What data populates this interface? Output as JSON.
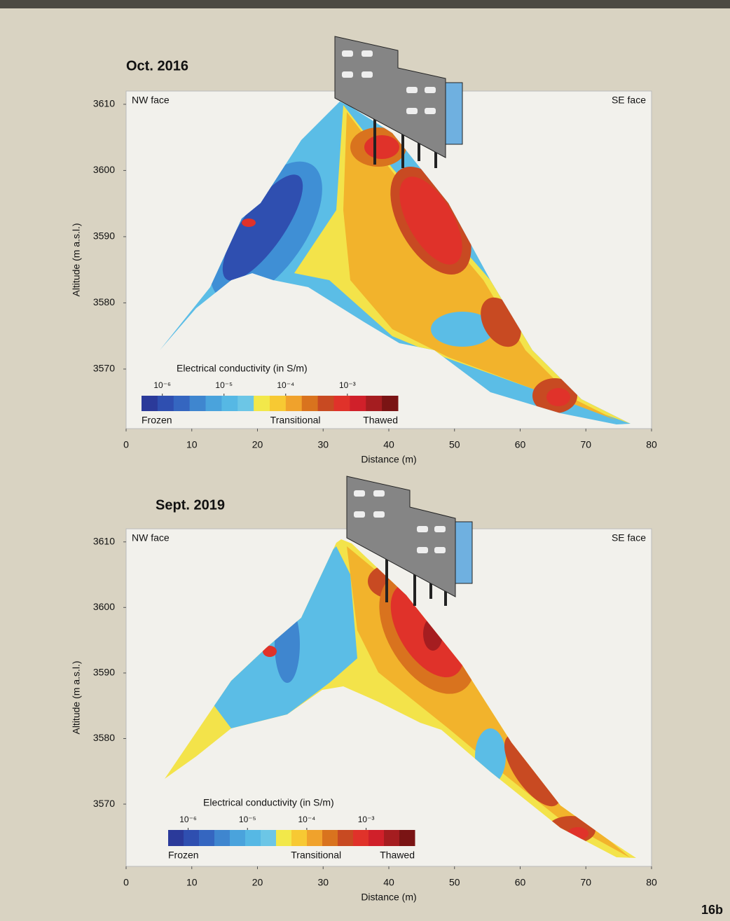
{
  "page_label": "16b",
  "chart_data": [
    {
      "type": "contour",
      "title": "Oct. 2016",
      "left_label": "NW face",
      "right_label": "SE face",
      "x_label": "Distance (m)",
      "y_label": "Altitude (m a.s.l.)",
      "xlim": [
        0,
        80
      ],
      "xticks": [
        0,
        10,
        20,
        30,
        40,
        50,
        60,
        70,
        80
      ],
      "ylim": [
        3561,
        3612
      ],
      "yticks": [
        3570,
        3580,
        3590,
        3600,
        3610
      ],
      "colorbar": {
        "title": "Electrical conductivity (in S/m)",
        "scale": "log",
        "clim": [
          4.6e-07,
          0.0066
        ],
        "ticks": [
          {
            "value": 1e-06,
            "label": "10⁻⁶"
          },
          {
            "value": 1e-05,
            "label": "10⁻⁵"
          },
          {
            "value": 0.0001,
            "label": "10⁻⁴"
          },
          {
            "value": 0.001,
            "label": "10⁻³"
          }
        ],
        "colors": [
          "#2b3a9a",
          "#2f4fb0",
          "#3566c0",
          "#3f86cf",
          "#4aa3dc",
          "#56b8e4",
          "#6cc6e6",
          "#f2e84a",
          "#f7c933",
          "#f0a22c",
          "#d9731e",
          "#c84a22",
          "#e0322a",
          "#d0202a",
          "#a51d20",
          "#7a1414"
        ],
        "labels": [
          "Frozen",
          "Transitional",
          "Thawed"
        ]
      }
    },
    {
      "type": "contour",
      "title": "Sept. 2019",
      "left_label": "NW face",
      "right_label": "SE face",
      "x_label": "Distance (m)",
      "y_label": "Altitude (m a.s.l.)",
      "xlim": [
        0,
        80
      ],
      "xticks": [
        0,
        10,
        20,
        30,
        40,
        50,
        60,
        70,
        80
      ],
      "ylim": [
        3560.5,
        3612
      ],
      "yticks": [
        3570,
        3580,
        3590,
        3600,
        3610
      ],
      "colorbar": {
        "title": "Electrical conductivity (in S/m)",
        "scale": "log",
        "clim": [
          4.6e-07,
          0.0066
        ],
        "ticks": [
          {
            "value": 1e-06,
            "label": "10⁻⁶"
          },
          {
            "value": 1e-05,
            "label": "10⁻⁵"
          },
          {
            "value": 0.0001,
            "label": "10⁻⁴"
          },
          {
            "value": 0.001,
            "label": "10⁻³"
          }
        ],
        "colors": [
          "#2b3a9a",
          "#2f4fb0",
          "#3566c0",
          "#3f86cf",
          "#4aa3dc",
          "#56b8e4",
          "#6cc6e6",
          "#f2e84a",
          "#f7c933",
          "#f0a22c",
          "#d9731e",
          "#c84a22",
          "#e0322a",
          "#d0202a",
          "#a51d20",
          "#7a1414"
        ],
        "labels": [
          "Frozen",
          "Transitional",
          "Thawed"
        ]
      }
    }
  ]
}
